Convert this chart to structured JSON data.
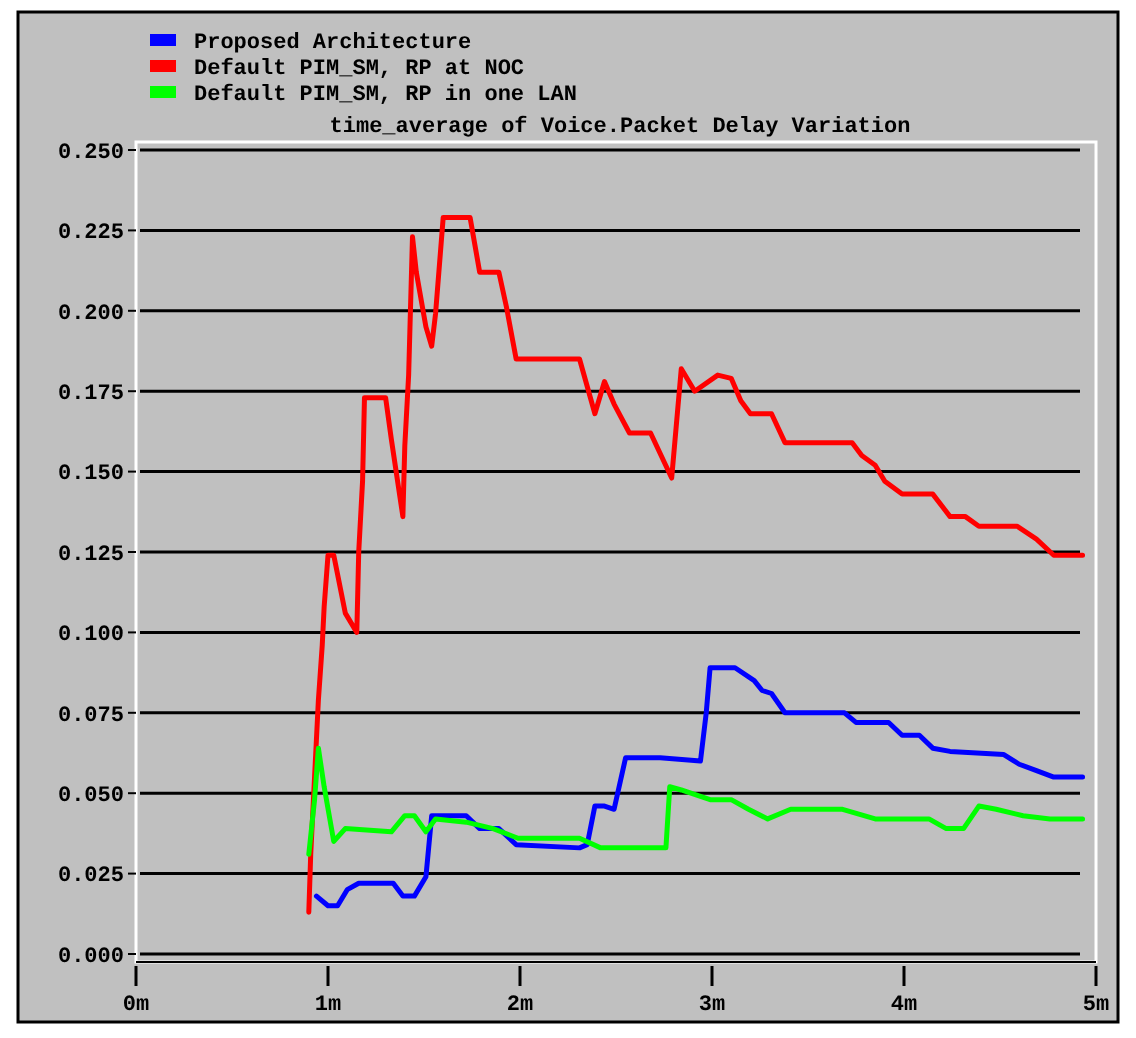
{
  "chart_data": {
    "type": "line",
    "title": "time_average of Voice.Packet Delay Variation",
    "xlim": [
      0,
      5
    ],
    "xticks": [
      {
        "value": 0,
        "label": "0m"
      },
      {
        "value": 1,
        "label": "1m"
      },
      {
        "value": 2,
        "label": "2m"
      },
      {
        "value": 3,
        "label": "3m"
      },
      {
        "value": 4,
        "label": "4m"
      },
      {
        "value": 5,
        "label": "5m"
      }
    ],
    "ylim": [
      0,
      0.25
    ],
    "yticks": [
      {
        "value": 0,
        "label": "0.000"
      },
      {
        "value": 0.025,
        "label": "0.025"
      },
      {
        "value": 0.05,
        "label": "0.050"
      },
      {
        "value": 0.075,
        "label": "0.075"
      },
      {
        "value": 0.1,
        "label": "0.100"
      },
      {
        "value": 0.125,
        "label": "0.125"
      },
      {
        "value": 0.15,
        "label": "0.150"
      },
      {
        "value": 0.175,
        "label": "0.175"
      },
      {
        "value": 0.2,
        "label": "0.200"
      },
      {
        "value": 0.225,
        "label": "0.225"
      },
      {
        "value": 0.25,
        "label": "0.250"
      }
    ],
    "grid": "y",
    "legend": "top left",
    "line_style": "solid",
    "series": [
      {
        "name": "Proposed Architecture",
        "color": "#0000ff",
        "x": [
          0.94,
          1.0,
          1.05,
          1.1,
          1.16,
          1.34,
          1.39,
          1.45,
          1.51,
          1.54,
          1.72,
          1.79,
          1.89,
          1.98,
          2.31,
          2.35,
          2.39,
          2.44,
          2.49,
          2.55,
          2.73,
          2.94,
          2.97,
          2.99,
          3.12,
          3.22,
          3.26,
          3.31,
          3.38,
          3.69,
          3.75,
          3.92,
          3.99,
          4.08,
          4.15,
          4.24,
          4.52,
          4.6,
          4.69,
          4.78,
          4.93
        ],
        "values": [
          0.018,
          0.015,
          0.015,
          0.02,
          0.022,
          0.022,
          0.018,
          0.018,
          0.024,
          0.043,
          0.043,
          0.039,
          0.039,
          0.034,
          0.033,
          0.034,
          0.046,
          0.046,
          0.045,
          0.061,
          0.061,
          0.06,
          0.075,
          0.089,
          0.089,
          0.085,
          0.082,
          0.081,
          0.075,
          0.075,
          0.072,
          0.072,
          0.068,
          0.068,
          0.064,
          0.063,
          0.062,
          0.059,
          0.057,
          0.055,
          0.055
        ]
      },
      {
        "name": "Default PIM_SM, RP at NOC",
        "color": "#ff0000",
        "x": [
          0.9,
          0.91,
          0.95,
          0.97,
          0.98,
          1.0,
          1.03,
          1.09,
          1.15,
          1.16,
          1.18,
          1.19,
          1.3,
          1.33,
          1.39,
          1.4,
          1.42,
          1.44,
          1.46,
          1.51,
          1.54,
          1.56,
          1.6,
          1.74,
          1.79,
          1.89,
          1.93,
          1.98,
          2.31,
          2.39,
          2.44,
          2.49,
          2.57,
          2.68,
          2.79,
          2.84,
          2.91,
          3.03,
          3.1,
          3.15,
          3.2,
          3.31,
          3.38,
          3.73,
          3.78,
          3.85,
          3.9,
          3.99,
          4.15,
          4.24,
          4.32,
          4.39,
          4.59,
          4.69,
          4.78,
          4.93
        ],
        "values": [
          0.013,
          0.031,
          0.079,
          0.096,
          0.108,
          0.124,
          0.124,
          0.106,
          0.1,
          0.125,
          0.147,
          0.173,
          0.173,
          0.16,
          0.136,
          0.158,
          0.18,
          0.223,
          0.212,
          0.195,
          0.189,
          0.199,
          0.229,
          0.229,
          0.212,
          0.212,
          0.201,
          0.185,
          0.185,
          0.168,
          0.178,
          0.171,
          0.162,
          0.162,
          0.148,
          0.182,
          0.175,
          0.18,
          0.179,
          0.172,
          0.168,
          0.168,
          0.159,
          0.159,
          0.155,
          0.152,
          0.147,
          0.143,
          0.143,
          0.136,
          0.136,
          0.133,
          0.133,
          0.129,
          0.124,
          0.124
        ]
      },
      {
        "name": "Default PIM_SM, RP in one LAN",
        "color": "#00ff00",
        "x": [
          0.9,
          0.93,
          0.95,
          0.98,
          1.03,
          1.09,
          1.33,
          1.4,
          1.45,
          1.51,
          1.56,
          1.72,
          1.86,
          1.99,
          2.31,
          2.42,
          2.76,
          2.78,
          2.84,
          2.99,
          3.1,
          3.19,
          3.29,
          3.41,
          3.68,
          3.85,
          4.13,
          4.22,
          4.31,
          4.39,
          4.48,
          4.62,
          4.76,
          4.93
        ],
        "values": [
          0.031,
          0.048,
          0.064,
          0.052,
          0.035,
          0.039,
          0.038,
          0.043,
          0.043,
          0.038,
          0.042,
          0.041,
          0.039,
          0.036,
          0.036,
          0.033,
          0.033,
          0.052,
          0.051,
          0.048,
          0.048,
          0.045,
          0.042,
          0.045,
          0.045,
          0.042,
          0.042,
          0.039,
          0.039,
          0.046,
          0.045,
          0.043,
          0.042,
          0.042
        ]
      }
    ]
  }
}
